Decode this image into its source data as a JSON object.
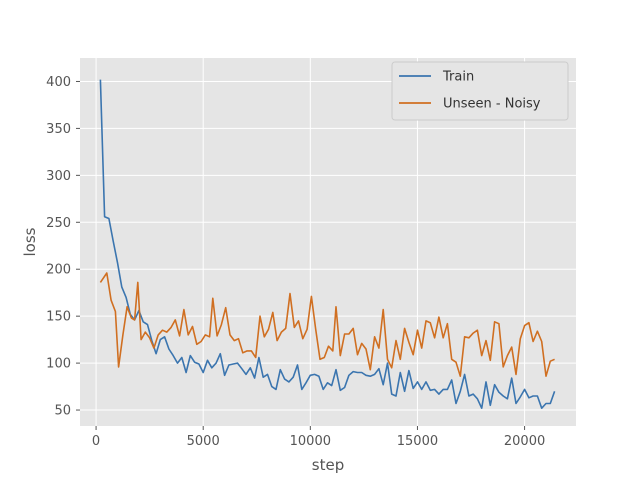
{
  "chart_data": {
    "type": "line",
    "title": "",
    "xlabel": "step",
    "ylabel": "loss",
    "xlim": [
      -750,
      22400
    ],
    "ylim": [
      33,
      425
    ],
    "xticks": [
      0,
      5000,
      10000,
      15000,
      20000
    ],
    "yticks": [
      50,
      100,
      150,
      200,
      250,
      300,
      350,
      400
    ],
    "grid": true,
    "legend_position": "top-right",
    "colors": {
      "background": "#e5e5e5",
      "grid": "#ffffff",
      "train": "#3b75af",
      "unseen": "#d06f21"
    },
    "series": [
      {
        "name": "Train",
        "color": "#3b75af",
        "points": [
          [
            200,
            402
          ],
          [
            400,
            256
          ],
          [
            600,
            254
          ],
          [
            800,
            230
          ],
          [
            1000,
            207
          ],
          [
            1200,
            181
          ],
          [
            1400,
            170
          ],
          [
            1600,
            152
          ],
          [
            1800,
            146
          ],
          [
            2000,
            156
          ],
          [
            2200,
            144
          ],
          [
            2400,
            141
          ],
          [
            2600,
            124
          ],
          [
            2800,
            110
          ],
          [
            3000,
            125
          ],
          [
            3200,
            128
          ],
          [
            3400,
            115
          ],
          [
            3600,
            108
          ],
          [
            3800,
            100
          ],
          [
            4000,
            106
          ],
          [
            4200,
            90
          ],
          [
            4400,
            108
          ],
          [
            4600,
            101
          ],
          [
            4800,
            99
          ],
          [
            5000,
            90
          ],
          [
            5200,
            103
          ],
          [
            5400,
            95
          ],
          [
            5600,
            100
          ],
          [
            5800,
            110
          ],
          [
            6000,
            87
          ],
          [
            6200,
            98
          ],
          [
            6400,
            99
          ],
          [
            6600,
            100
          ],
          [
            6800,
            94
          ],
          [
            7000,
            88
          ],
          [
            7200,
            95
          ],
          [
            7400,
            84
          ],
          [
            7600,
            106
          ],
          [
            7800,
            85
          ],
          [
            8000,
            88
          ],
          [
            8200,
            75
          ],
          [
            8400,
            72
          ],
          [
            8600,
            93
          ],
          [
            8800,
            83
          ],
          [
            9000,
            80
          ],
          [
            9200,
            85
          ],
          [
            9400,
            98
          ],
          [
            9600,
            72
          ],
          [
            9800,
            79
          ],
          [
            10000,
            87
          ],
          [
            10200,
            88
          ],
          [
            10400,
            86
          ],
          [
            10600,
            72
          ],
          [
            10800,
            79
          ],
          [
            11000,
            76
          ],
          [
            11200,
            93
          ],
          [
            11400,
            71
          ],
          [
            11600,
            74
          ],
          [
            11800,
            87
          ],
          [
            12000,
            91
          ],
          [
            12200,
            90
          ],
          [
            12400,
            90
          ],
          [
            12600,
            87
          ],
          [
            12800,
            86
          ],
          [
            13000,
            88
          ],
          [
            13200,
            94
          ],
          [
            13400,
            77
          ],
          [
            13600,
            100
          ],
          [
            13800,
            67
          ],
          [
            14000,
            65
          ],
          [
            14200,
            90
          ],
          [
            14400,
            70
          ],
          [
            14600,
            92
          ],
          [
            14800,
            73
          ],
          [
            15000,
            80
          ],
          [
            15200,
            72
          ],
          [
            15400,
            80
          ],
          [
            15600,
            71
          ],
          [
            15800,
            72
          ],
          [
            16000,
            67
          ],
          [
            16200,
            72
          ],
          [
            16400,
            72
          ],
          [
            16600,
            82
          ],
          [
            16800,
            57
          ],
          [
            17000,
            70
          ],
          [
            17200,
            88
          ],
          [
            17400,
            65
          ],
          [
            17600,
            67
          ],
          [
            17800,
            62
          ],
          [
            18000,
            52
          ],
          [
            18200,
            80
          ],
          [
            18400,
            55
          ],
          [
            18600,
            77
          ],
          [
            18800,
            69
          ],
          [
            19000,
            65
          ],
          [
            19200,
            62
          ],
          [
            19400,
            84
          ],
          [
            19600,
            57
          ],
          [
            19800,
            64
          ],
          [
            20000,
            72
          ],
          [
            20200,
            63
          ],
          [
            20400,
            65
          ],
          [
            20600,
            65
          ],
          [
            20800,
            52
          ],
          [
            21000,
            57
          ],
          [
            21200,
            57
          ],
          [
            21400,
            70
          ]
        ]
      },
      {
        "name": "Unseen - Noisy",
        "color": "#d06f21",
        "points": [
          [
            200,
            186
          ],
          [
            500,
            196
          ],
          [
            700,
            167
          ],
          [
            900,
            155
          ],
          [
            1050,
            96
          ],
          [
            1250,
            130
          ],
          [
            1450,
            160
          ],
          [
            1650,
            148
          ],
          [
            1800,
            146
          ],
          [
            1950,
            186
          ],
          [
            2100,
            125
          ],
          [
            2300,
            133
          ],
          [
            2500,
            127
          ],
          [
            2700,
            116
          ],
          [
            2900,
            130
          ],
          [
            3100,
            135
          ],
          [
            3300,
            133
          ],
          [
            3500,
            138
          ],
          [
            3700,
            146
          ],
          [
            3900,
            129
          ],
          [
            4100,
            157
          ],
          [
            4300,
            130
          ],
          [
            4500,
            139
          ],
          [
            4700,
            120
          ],
          [
            4900,
            123
          ],
          [
            5100,
            130
          ],
          [
            5300,
            128
          ],
          [
            5450,
            169
          ],
          [
            5650,
            129
          ],
          [
            5850,
            141
          ],
          [
            6050,
            159
          ],
          [
            6250,
            130
          ],
          [
            6450,
            124
          ],
          [
            6650,
            126
          ],
          [
            6850,
            111
          ],
          [
            7050,
            113
          ],
          [
            7250,
            113
          ],
          [
            7450,
            106
          ],
          [
            7650,
            150
          ],
          [
            7850,
            128
          ],
          [
            8050,
            136
          ],
          [
            8250,
            154
          ],
          [
            8450,
            124
          ],
          [
            8650,
            133
          ],
          [
            8850,
            137
          ],
          [
            9050,
            174
          ],
          [
            9250,
            138
          ],
          [
            9450,
            145
          ],
          [
            9650,
            126
          ],
          [
            9850,
            136
          ],
          [
            10050,
            171
          ],
          [
            10250,
            136
          ],
          [
            10450,
            104
          ],
          [
            10650,
            106
          ],
          [
            10850,
            118
          ],
          [
            11050,
            113
          ],
          [
            11200,
            160
          ],
          [
            11400,
            108
          ],
          [
            11600,
            131
          ],
          [
            11800,
            131
          ],
          [
            12000,
            137
          ],
          [
            12200,
            109
          ],
          [
            12400,
            121
          ],
          [
            12600,
            115
          ],
          [
            12800,
            93
          ],
          [
            13000,
            128
          ],
          [
            13200,
            116
          ],
          [
            13400,
            157
          ],
          [
            13600,
            104
          ],
          [
            13800,
            95
          ],
          [
            14000,
            124
          ],
          [
            14200,
            104
          ],
          [
            14400,
            137
          ],
          [
            14600,
            122
          ],
          [
            14800,
            109
          ],
          [
            15000,
            135
          ],
          [
            15200,
            116
          ],
          [
            15400,
            145
          ],
          [
            15600,
            143
          ],
          [
            15800,
            127
          ],
          [
            16000,
            149
          ],
          [
            16200,
            127
          ],
          [
            16400,
            142
          ],
          [
            16600,
            104
          ],
          [
            16800,
            101
          ],
          [
            17000,
            86
          ],
          [
            17200,
            128
          ],
          [
            17400,
            127
          ],
          [
            17600,
            132
          ],
          [
            17800,
            135
          ],
          [
            18000,
            108
          ],
          [
            18200,
            124
          ],
          [
            18400,
            103
          ],
          [
            18600,
            144
          ],
          [
            18800,
            142
          ],
          [
            19000,
            96
          ],
          [
            19200,
            108
          ],
          [
            19400,
            117
          ],
          [
            19600,
            88
          ],
          [
            19800,
            126
          ],
          [
            20000,
            140
          ],
          [
            20200,
            143
          ],
          [
            20400,
            123
          ],
          [
            20600,
            134
          ],
          [
            20800,
            123
          ],
          [
            21000,
            86
          ],
          [
            21200,
            102
          ],
          [
            21400,
            104
          ]
        ]
      }
    ]
  }
}
